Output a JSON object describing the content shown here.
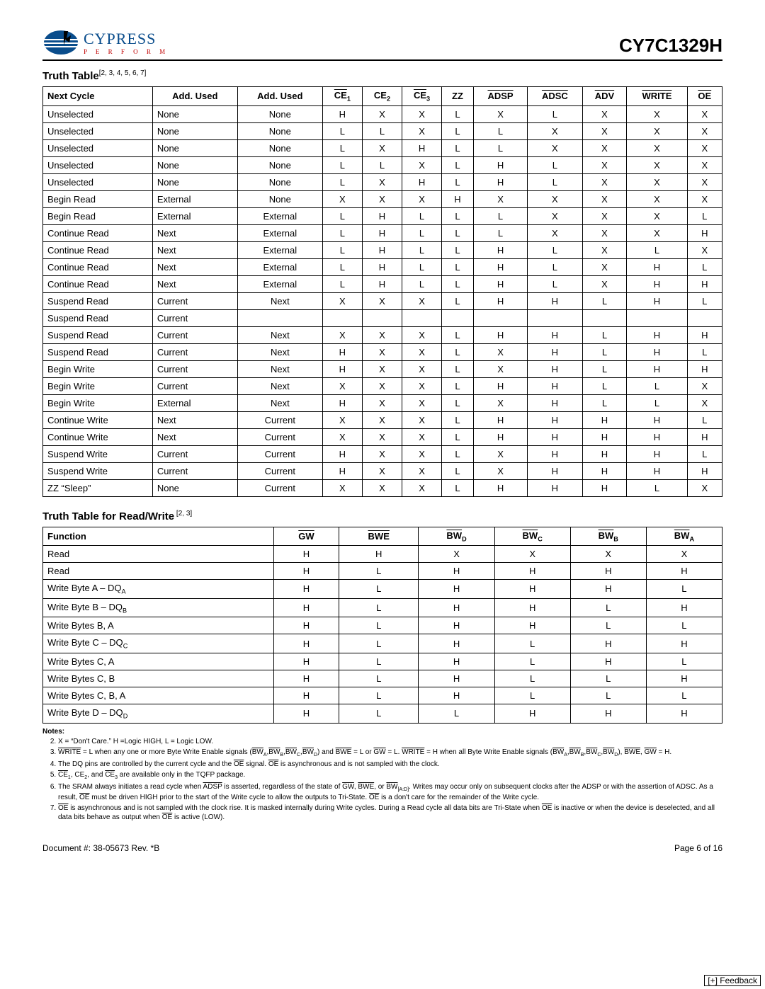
{
  "header": {
    "brand_name": "CYPRESS",
    "brand_tag": "P E R F O R M",
    "part_number": "CY7C1329H"
  },
  "table1": {
    "title": "Truth Table",
    "refs": "[2, 3, 4, 5, 6, 7]",
    "rows": [
      [
        "Unselected",
        "None",
        "None",
        "H",
        "X",
        "X",
        "L",
        "X",
        "L",
        "X",
        "X",
        "X"
      ],
      [
        "Unselected",
        "None",
        "None",
        "L",
        "L",
        "X",
        "L",
        "L",
        "X",
        "X",
        "X",
        "X"
      ],
      [
        "Unselected",
        "None",
        "None",
        "L",
        "X",
        "H",
        "L",
        "L",
        "X",
        "X",
        "X",
        "X"
      ],
      [
        "Unselected",
        "None",
        "None",
        "L",
        "L",
        "X",
        "L",
        "H",
        "L",
        "X",
        "X",
        "X"
      ],
      [
        "Unselected",
        "None",
        "None",
        "L",
        "X",
        "H",
        "L",
        "H",
        "L",
        "X",
        "X",
        "X"
      ],
      [
        "Begin Read",
        "External",
        "None",
        "X",
        "X",
        "X",
        "H",
        "X",
        "X",
        "X",
        "X",
        "X"
      ],
      [
        "Begin Read",
        "External",
        "External",
        "L",
        "H",
        "L",
        "L",
        "L",
        "X",
        "X",
        "X",
        "L"
      ],
      [
        "Continue Read",
        "Next",
        "External",
        "L",
        "H",
        "L",
        "L",
        "L",
        "X",
        "X",
        "X",
        "H"
      ],
      [
        "Continue Read",
        "Next",
        "External",
        "L",
        "H",
        "L",
        "L",
        "H",
        "L",
        "X",
        "L",
        "X"
      ],
      [
        "Continue Read",
        "Next",
        "External",
        "L",
        "H",
        "L",
        "L",
        "H",
        "L",
        "X",
        "H",
        "L"
      ],
      [
        "Continue Read",
        "Next",
        "External",
        "L",
        "H",
        "L",
        "L",
        "H",
        "L",
        "X",
        "H",
        "H"
      ],
      [
        "Suspend Read",
        "Current",
        "Next",
        "X",
        "X",
        "X",
        "L",
        "H",
        "H",
        "L",
        "H",
        "L"
      ],
      [
        "Suspend Read",
        "Current",
        "",
        "",
        "",
        "",
        "",
        "",
        "",
        "",
        "",
        ""
      ],
      [
        "Suspend Read",
        "Current",
        "Next",
        "X",
        "X",
        "X",
        "L",
        "H",
        "H",
        "L",
        "H",
        "H"
      ],
      [
        "Suspend Read",
        "Current",
        "Next",
        "H",
        "X",
        "X",
        "L",
        "X",
        "H",
        "L",
        "H",
        "L"
      ],
      [
        "Begin Write",
        "Current",
        "Next",
        "H",
        "X",
        "X",
        "L",
        "X",
        "H",
        "L",
        "H",
        "H"
      ],
      [
        "Begin Write",
        "Current",
        "Next",
        "X",
        "X",
        "X",
        "L",
        "H",
        "H",
        "L",
        "L",
        "X"
      ],
      [
        "Begin Write",
        "External",
        "Next",
        "H",
        "X",
        "X",
        "L",
        "X",
        "H",
        "L",
        "L",
        "X"
      ],
      [
        "Continue Write",
        "Next",
        "Current",
        "X",
        "X",
        "X",
        "L",
        "H",
        "H",
        "H",
        "H",
        "L"
      ],
      [
        "Continue Write",
        "Next",
        "Current",
        "X",
        "X",
        "X",
        "L",
        "H",
        "H",
        "H",
        "H",
        "H"
      ],
      [
        "Suspend Write",
        "Current",
        "Current",
        "H",
        "X",
        "X",
        "L",
        "X",
        "H",
        "H",
        "H",
        "L"
      ],
      [
        "Suspend Write",
        "Current",
        "Current",
        "H",
        "X",
        "X",
        "L",
        "X",
        "H",
        "H",
        "H",
        "H"
      ],
      [
        "ZZ “Sleep”",
        "None",
        "Current",
        "X",
        "X",
        "X",
        "L",
        "H",
        "H",
        "H",
        "L",
        "X"
      ]
    ]
  },
  "table2": {
    "title": "Truth Table for Read/Write",
    "refs": " [2, 3]",
    "rows": [
      {
        "func_html": "Read",
        "cells": [
          "H",
          "H",
          "X",
          "X",
          "X",
          "X"
        ]
      },
      {
        "func_html": "Read",
        "cells": [
          "H",
          "L",
          "H",
          "H",
          "H",
          "H"
        ]
      },
      {
        "func_html": "Write Byte A – DQ<sub>A</sub>",
        "cells": [
          "H",
          "L",
          "H",
          "H",
          "H",
          "L"
        ]
      },
      {
        "func_html": "Write Byte B – DQ<sub>B</sub>",
        "cells": [
          "H",
          "L",
          "H",
          "H",
          "L",
          "H"
        ]
      },
      {
        "func_html": "Write Bytes B, A",
        "cells": [
          "H",
          "L",
          "H",
          "H",
          "L",
          "L"
        ]
      },
      {
        "func_html": "Write Byte C – DQ<sub>C</sub>",
        "cells": [
          "H",
          "L",
          "H",
          "L",
          "H",
          "H"
        ]
      },
      {
        "func_html": "Write Bytes C, A",
        "cells": [
          "H",
          "L",
          "H",
          "L",
          "H",
          "L"
        ]
      },
      {
        "func_html": "Write Bytes C, B",
        "cells": [
          "H",
          "L",
          "H",
          "L",
          "L",
          "H"
        ]
      },
      {
        "func_html": "Write Bytes C, B, A",
        "cells": [
          "H",
          "L",
          "H",
          "L",
          "L",
          "L"
        ]
      },
      {
        "func_html": "Write Byte D – DQ<sub>D</sub>",
        "cells": [
          "H",
          "L",
          "L",
          "H",
          "H",
          "H"
        ]
      }
    ]
  },
  "notes_heading": "Notes:",
  "notes": [
    "X = “Don't Care.” H =Logic HIGH, L = Logic LOW.",
    "<span class='overline'>WRITE</span> = L when any one or more Byte Write Enable signals (<span class='overline'>BW</span><sub>A</sub>,<span class='overline'>BW</span><sub>B</sub>,<span class='overline'>BW</span><sub>C</sub>,<span class='overline'>BW</span><sub>D</sub>) and <span class='overline'>BWE</span> = L or <span class='overline'>GW</span> = L. <span class='overline'>WRITE</span> = H when all Byte Write Enable signals (<span class='overline'>BW</span><sub>A</sub>,<span class='overline'>BW</span><sub>B</sub>,<span class='overline'>BW</span><sub>C</sub>,<span class='overline'>BW</span><sub>D</sub>), <span class='overline'>BWE</span>, <span class='overline'>GW</span> = H.",
    "The DQ pins are controlled by the current cycle and the <span class='overline'>OE</span> signal. <span class='overline'>OE</span> is asynchronous and is not sampled with the clock.",
    "<span class='overline'>CE</span><sub>1</sub>, CE<sub>2</sub>, and <span class='overline'>CE</span><sub>3</sub> are available only in the TQFP package.",
    "The SRAM always initiates a read cycle when <span class='overline'>ADSP</span> is asserted, regardless of the state of <span class='overline'>GW</span>, <span class='overline'>BWE</span>, or <span class='overline'>BW</span><sub>[A:D]</sub>. Writes may occur only on subsequent clocks after the ADSP or with the assertion of ADSC. As a result, <span class='overline'>OE</span> must be driven HIGH prior to the start of the Write cycle to allow the outputs to Tri-State. <span class='overline'>OE</span> is a don't care for the remainder of the Write cycle.",
    "<span class='overline'>OE</span> is asynchronous and is not sampled with the clock rise. It is masked internally during Write cycles. During a Read cycle all data bits are Tri-State when <span class='overline'>OE</span> is inactive or when the device is deselected, and all data bits behave as output when <span class='overline'>OE</span> is active (LOW)."
  ],
  "footer": {
    "doc": "Document #: 38-05673 Rev. *B",
    "page": "Page 6 of 16"
  },
  "feedback": "[+] Feedback"
}
